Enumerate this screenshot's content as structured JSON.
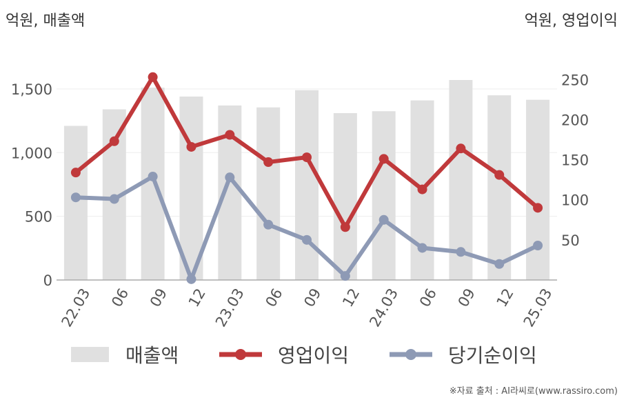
{
  "chart_data": {
    "type": "bar+line",
    "left_unit_label": "억원, 매출액",
    "right_unit_label": "억원, 영업이익",
    "categories": [
      "22.03",
      "06",
      "09",
      "12",
      "23.03",
      "06",
      "09",
      "12",
      "24.03",
      "06",
      "09",
      "12",
      "25.03"
    ],
    "left_axis": {
      "ylim": [
        0,
        1700
      ],
      "ticks": [
        "0",
        "500",
        "1,000",
        "1,500"
      ]
    },
    "right_axis": {
      "ylim": [
        0,
        270
      ],
      "ticks": [
        "50",
        "100",
        "150",
        "200",
        "250"
      ]
    },
    "series": [
      {
        "name": "매출액",
        "kind": "bar",
        "axis": "left",
        "color": "#e0e0e0",
        "values": [
          1210,
          1340,
          1510,
          1440,
          1370,
          1355,
          1490,
          1310,
          1325,
          1410,
          1570,
          1450,
          1415
        ]
      },
      {
        "name": "영업이익",
        "kind": "line",
        "axis": "right",
        "color": "#c0393b",
        "values": [
          134,
          173,
          253,
          166,
          181,
          147,
          153,
          66,
          151,
          113,
          164,
          131,
          90
        ]
      },
      {
        "name": "당기순이익",
        "kind": "line",
        "axis": "right",
        "color": "#8e9ab5",
        "values": [
          103,
          101,
          129,
          1,
          128,
          69,
          50,
          5,
          75,
          40,
          35,
          20,
          43
        ]
      }
    ],
    "grid": true,
    "legend_position": "bottom"
  },
  "source": "※자료 출처 : AI라씨로(www.rassiro.com)"
}
